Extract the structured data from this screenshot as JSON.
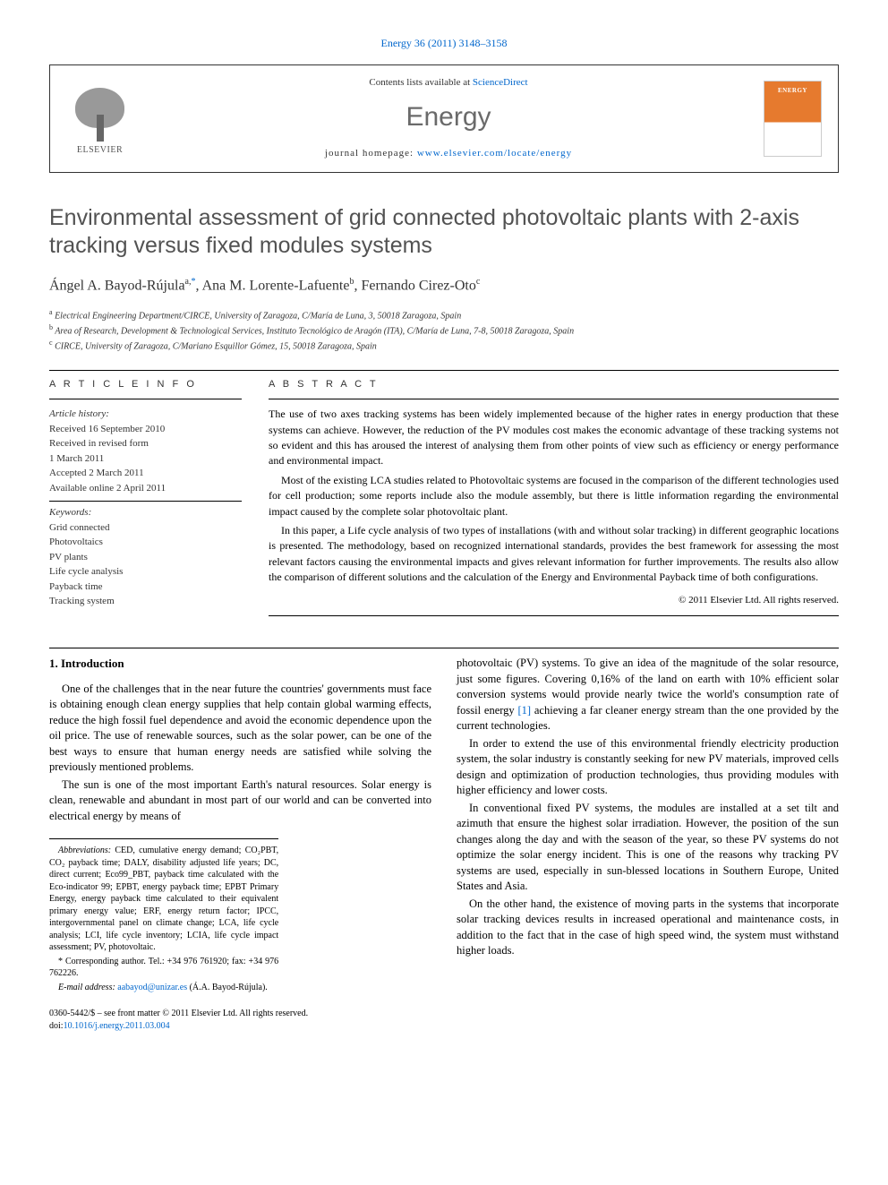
{
  "citation": "Energy 36 (2011) 3148–3158",
  "header": {
    "contents_prefix": "Contents lists available at ",
    "contents_link": "ScienceDirect",
    "journal": "Energy",
    "homepage_prefix": "journal homepage: ",
    "homepage_link": "www.elsevier.com/locate/energy",
    "publisher": "ELSEVIER"
  },
  "title": "Environmental assessment of grid connected photovoltaic plants with 2-axis tracking versus fixed modules systems",
  "authors_html": "Ángel A. Bayod-Rújula",
  "author1": {
    "name": "Ángel A. Bayod-Rújula",
    "sup": "a,",
    "corr": "*"
  },
  "author2": {
    "name": "Ana M. Lorente-Lafuente",
    "sup": "b"
  },
  "author3": {
    "name": "Fernando Cirez-Oto",
    "sup": "c"
  },
  "affiliations": {
    "a": "Electrical Engineering Department/CIRCE, University of Zaragoza, C/María de Luna, 3, 50018 Zaragoza, Spain",
    "b": "Area of Research, Development & Technological Services, Instituto Tecnológico de Aragón (ITA), C/María de Luna, 7-8, 50018 Zaragoza, Spain",
    "c": "CIRCE, University of Zaragoza, C/Mariano Esquillor Gómez, 15, 50018 Zaragoza, Spain"
  },
  "article_info": {
    "label": "A R T I C L E   I N F O",
    "history_label": "Article history:",
    "received": "Received 16 September 2010",
    "revised1": "Received in revised form",
    "revised2": "1 March 2011",
    "accepted": "Accepted 2 March 2011",
    "online": "Available online 2 April 2011",
    "keywords_label": "Keywords:",
    "keywords": [
      "Grid connected",
      "Photovoltaics",
      "PV plants",
      "Life cycle analysis",
      "Payback time",
      "Tracking system"
    ]
  },
  "abstract": {
    "label": "A B S T R A C T",
    "p1": "The use of two axes tracking systems has been widely implemented because of the higher rates in energy production that these systems can achieve. However, the reduction of the PV modules cost makes the economic advantage of these tracking systems not so evident and this has aroused the interest of analysing them from other points of view such as efficiency or energy performance and environmental impact.",
    "p2": "Most of the existing LCA studies related to Photovoltaic systems are focused in the comparison of the different technologies used for cell production; some reports include also the module assembly, but there is little information regarding the environmental impact caused by the complete solar photovoltaic plant.",
    "p3": "In this paper, a Life cycle analysis of two types of installations (with and without solar tracking) in different geographic locations is presented. The methodology, based on recognized international standards, provides the best framework for assessing the most relevant factors causing the environmental impacts and gives relevant information for further improvements. The results also allow the comparison of different solutions and the calculation of the Energy and Environmental Payback time of both configurations.",
    "copyright": "© 2011 Elsevier Ltd. All rights reserved."
  },
  "intro": {
    "heading": "1.  Introduction",
    "p1": "One of the challenges that in the near future the countries' governments must face is obtaining enough clean energy supplies that help contain global warming effects, reduce the high fossil fuel dependence and avoid the economic dependence upon the oil price. The use of renewable sources, such as the solar power, can be one of the best ways to ensure that human energy needs are satisfied while solving the previously mentioned problems.",
    "p2a": "The sun is one of the most important Earth's natural resources. Solar energy is clean, renewable and abundant in most part of our world and can be converted into electrical energy by means of",
    "p2b_pre": "photovoltaic (PV) systems. To give an idea of the magnitude of the solar resource, just some figures. Covering 0,16% of the land on earth with 10% efficient solar conversion systems would provide nearly twice the world's consumption rate of fossil energy ",
    "p2b_ref": "[1]",
    "p2b_post": " achieving a far cleaner energy stream than the one provided by the current technologies.",
    "p3": "In order to extend the use of this environmental friendly electricity production system, the solar industry is constantly seeking for new PV materials, improved cells design and optimization of production technologies, thus providing modules with higher efficiency and lower costs.",
    "p4": "In conventional fixed PV systems, the modules are installed at a set tilt and azimuth that ensure the highest solar irradiation. However, the position of the sun changes along the day and with the season of the year, so these PV systems do not optimize the solar energy incident. This is one of the reasons why tracking PV systems are used, especially in sun-blessed locations in Southern Europe, United States and Asia.",
    "p5": "On the other hand, the existence of moving parts in the systems that incorporate solar tracking devices results in increased operational and maintenance costs, in addition to the fact that in the case of high speed wind, the system must withstand higher loads."
  },
  "footnotes": {
    "abbrev_label": "Abbreviations:",
    "abbrev": " CED, cumulative energy demand; CO₂PBT, CO₂ payback time; DALY, disability adjusted life years; DC, direct current; Eco99_PBT, payback time calculated with the Eco-indicator 99; EPBT, energy payback time; EPBT Primary Energy, energy payback time calculated to their equivalent primary energy value; ERF, energy return factor; IPCC, intergovernmental panel on climate change; LCA, life cycle analysis; LCI, life cycle inventory; LCIA, life cycle impact assessment; PV, photovoltaic.",
    "corr": "* Corresponding author. Tel.: +34 976 761920; fax: +34 976 762226.",
    "email_label": "E-mail address: ",
    "email": "aabayod@unizar.es",
    "email_suffix": " (Á.A. Bayod-Rújula)."
  },
  "bottom": {
    "line1": "0360-5442/$ – see front matter © 2011 Elsevier Ltd. All rights reserved.",
    "doi_prefix": "doi:",
    "doi": "10.1016/j.energy.2011.03.004"
  }
}
